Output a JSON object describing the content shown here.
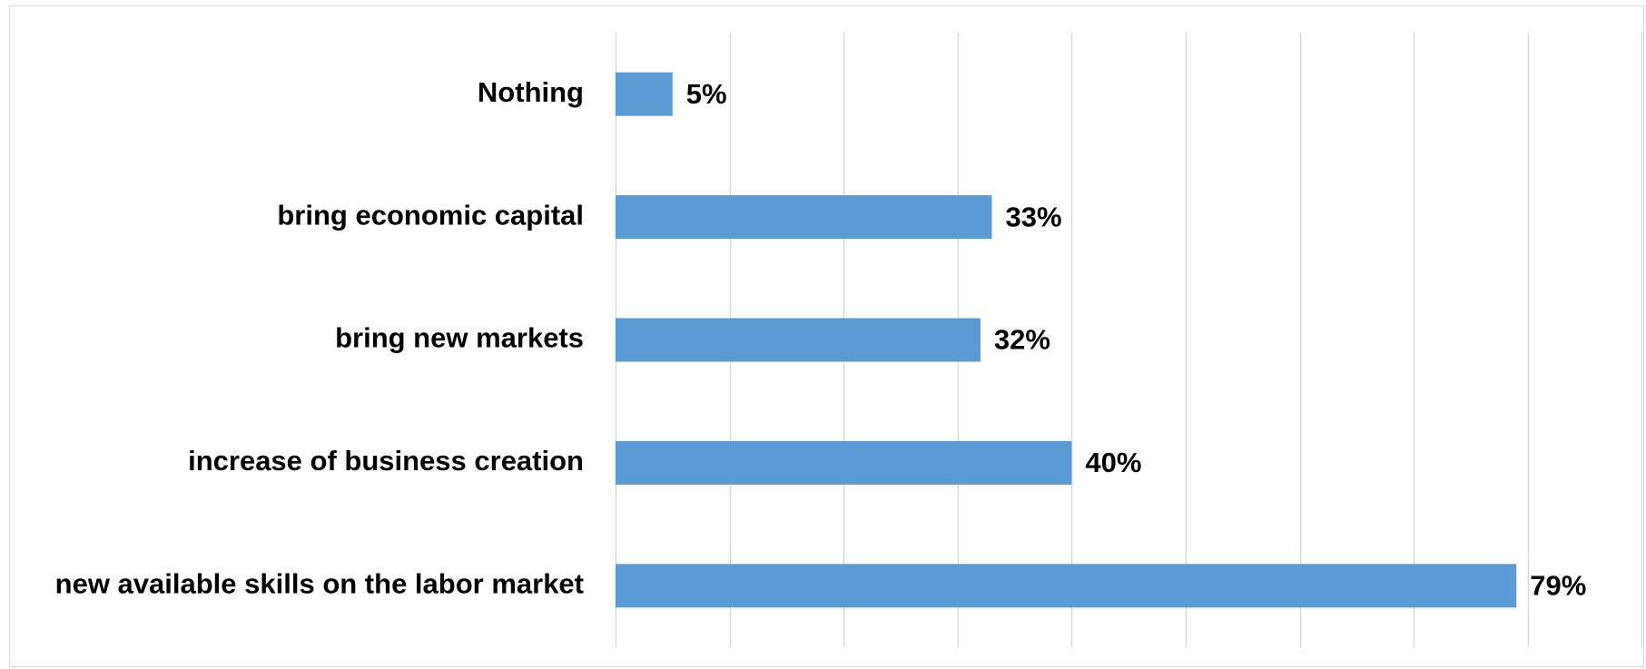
{
  "chart_data": {
    "type": "bar",
    "orientation": "horizontal",
    "categories": [
      "Nothing",
      "bring economic capital",
      "bring new markets",
      "increase of business creation",
      "new available skills on the labor market"
    ],
    "values": [
      5,
      33,
      32,
      40,
      79
    ],
    "value_labels": [
      "5%",
      "33%",
      "32%",
      "40%",
      "79%"
    ],
    "unit": "%",
    "xlim": [
      0,
      90
    ],
    "x_grid_step": 10,
    "grid": true,
    "x_tick_labels_visible": false,
    "legend": "none",
    "bar_color": "#5B9BD5",
    "gridline_color": "#d9d9d9"
  }
}
